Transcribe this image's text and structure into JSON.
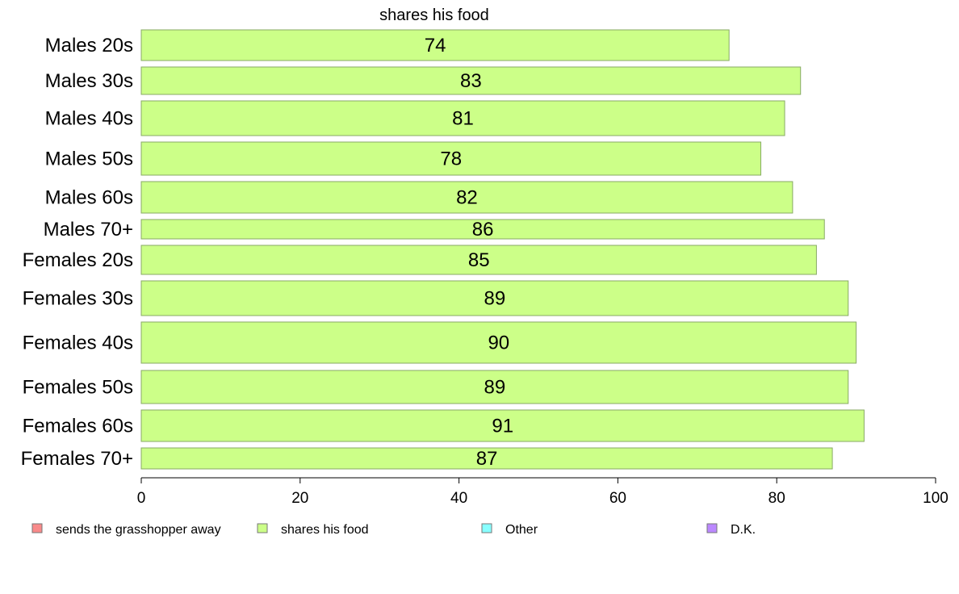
{
  "chart_data": {
    "type": "bar",
    "orientation": "horizontal",
    "title": "shares his food",
    "categories": [
      "Males 20s",
      "Males 30s",
      "Males 40s",
      "Males 50s",
      "Males 60s",
      "Males 70+",
      "Females 20s",
      "Females 30s",
      "Females 40s",
      "Females 50s",
      "Females 60s",
      "Females 70+"
    ],
    "series": [
      {
        "name": "shares his food",
        "values": [
          74,
          83,
          81,
          78,
          82,
          86,
          85,
          89,
          90,
          89,
          91,
          87
        ]
      }
    ],
    "xlim": [
      0,
      100
    ],
    "xticks": [
      0,
      20,
      40,
      60,
      80,
      100
    ],
    "grid": false,
    "legend_position": "bottom",
    "legend": [
      {
        "label": "sends the grasshopper away",
        "color": "#f98a8a"
      },
      {
        "label": "shares his food",
        "color": "#ccff88"
      },
      {
        "label": "Other",
        "color": "#88ffff"
      },
      {
        "label": "D.K.",
        "color": "#bb88ff"
      }
    ],
    "bar_color": "#ccff88",
    "bar_border_color": "#88aa66"
  }
}
